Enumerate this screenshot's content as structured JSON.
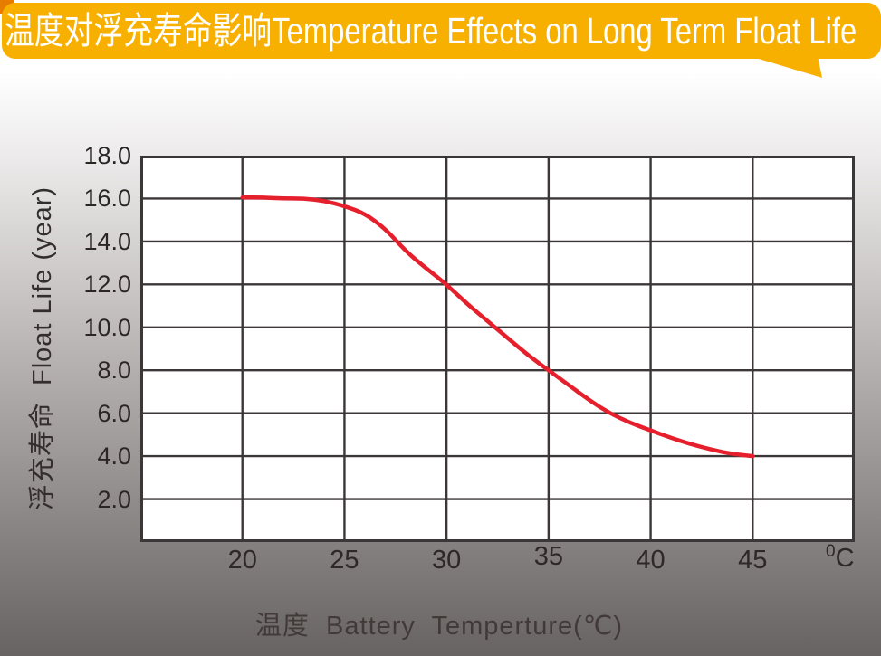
{
  "banner": {
    "title": "温度对浮充寿命影响Temperature Effects on Long Term Float Life",
    "bg_color": "#F8B000",
    "corner_accent_color": "#E67C00",
    "text_color": "#FFFFFF"
  },
  "chart_data": {
    "type": "line",
    "title": "温度对浮充寿命影响Temperature Effects on Long Term Float Life",
    "plot_bg": "#FFFFFF",
    "grid_color": "#3B3637",
    "grid": true,
    "legend": "none",
    "x_axis": {
      "label": "温度  Battery  Temperture(℃)",
      "unit_sup": "0",
      "unit_base": "C",
      "min": 15,
      "max": 50,
      "gridline_step": 5,
      "tick_values": [
        20,
        25,
        30,
        35,
        40,
        45
      ],
      "tick_labels": [
        "20",
        "25",
        "30",
        "35",
        "40",
        "45"
      ]
    },
    "y_axis": {
      "label": "浮充寿命  Float Life (year)",
      "min": 0,
      "max": 18,
      "gridline_step": 2,
      "tick_values": [
        18,
        16,
        14,
        12,
        10,
        8,
        6,
        4,
        2
      ],
      "tick_labels": [
        "18.0",
        "16.0",
        "14.0",
        "12.0",
        "10.0",
        "8.0",
        "6.0",
        "4.0",
        "2.0"
      ]
    },
    "series": [
      {
        "name": "float-life-vs-temperature",
        "color": "#E51F2B",
        "points": [
          [
            20,
            16.05
          ],
          [
            21,
            16.05
          ],
          [
            22,
            16.0
          ],
          [
            23,
            16.0
          ],
          [
            24,
            15.9
          ],
          [
            25,
            15.65
          ],
          [
            26,
            15.3
          ],
          [
            27,
            14.6
          ],
          [
            28,
            13.55
          ],
          [
            29,
            12.75
          ],
          [
            30,
            12.0
          ],
          [
            31,
            11.1
          ],
          [
            32,
            10.3
          ],
          [
            33,
            9.5
          ],
          [
            34,
            8.7
          ],
          [
            35,
            8.0
          ],
          [
            36,
            7.3
          ],
          [
            37,
            6.6
          ],
          [
            38,
            6.0
          ],
          [
            39,
            5.55
          ],
          [
            40,
            5.2
          ],
          [
            41,
            4.85
          ],
          [
            42,
            4.55
          ],
          [
            43,
            4.3
          ],
          [
            44,
            4.1
          ],
          [
            45,
            4.0
          ]
        ]
      }
    ]
  }
}
